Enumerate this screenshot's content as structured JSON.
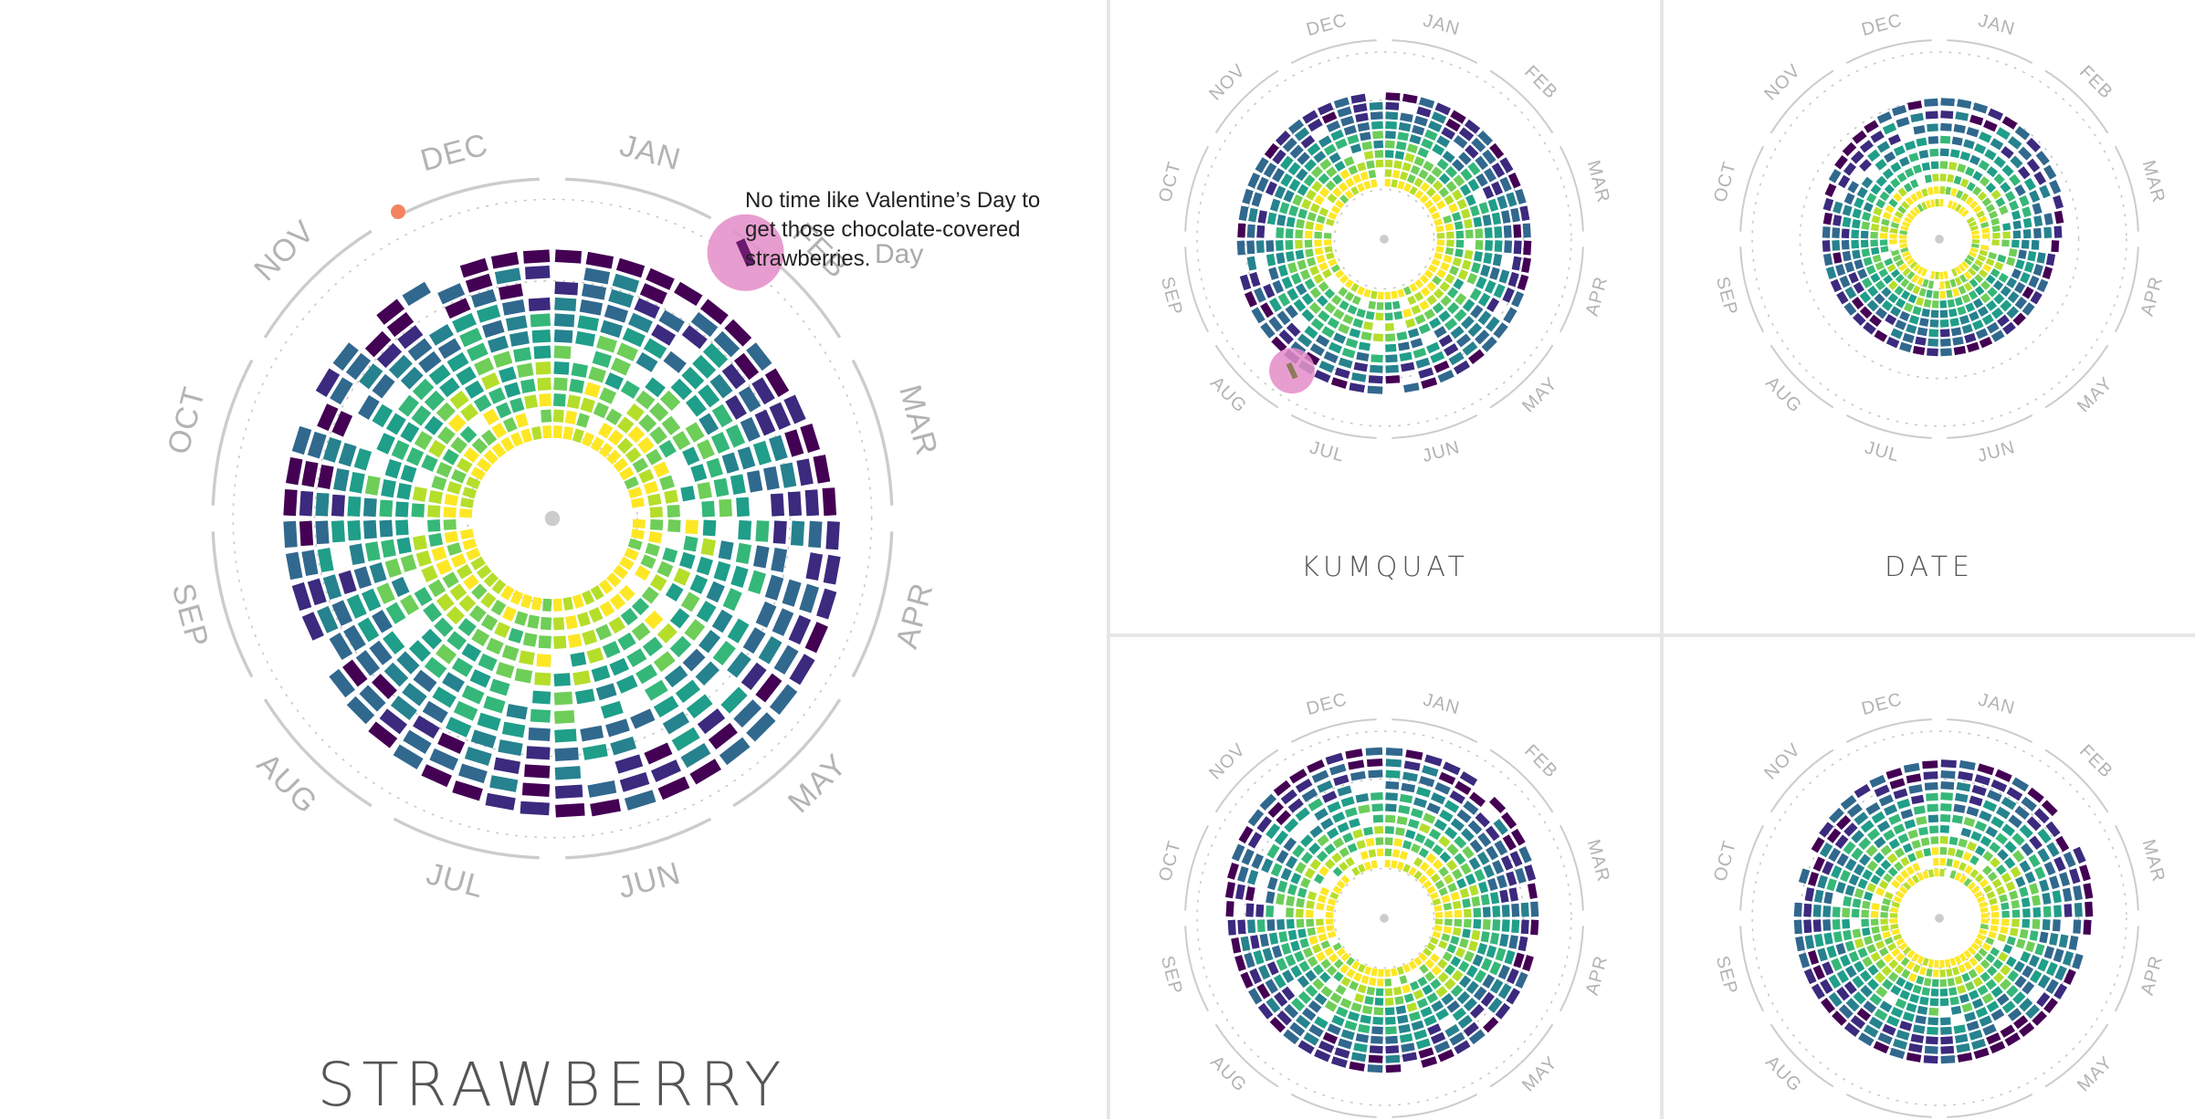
{
  "months": [
    "JAN",
    "FEB",
    "MAR",
    "APR",
    "MAY",
    "JUN",
    "JUL",
    "AUG",
    "SEP",
    "OCT",
    "NOV",
    "DEC"
  ],
  "main": {
    "title": "STRAWBERRY",
    "annotation": "No time like Valentine’s Day to get those chocolate-covered strawberries.",
    "annotation_ghost": "Day"
  },
  "panels": {
    "kumquat": {
      "title": "KUMQUAT"
    },
    "date": {
      "title": "DATE"
    },
    "bottom_left": {
      "title": ""
    },
    "bottom_right": {
      "title": ""
    }
  },
  "colors": {
    "viridis": [
      "#440154",
      "#3b2a7e",
      "#31688e",
      "#26828e",
      "#1f9e89",
      "#35b779",
      "#6ece58",
      "#b5de2b",
      "#fde725"
    ],
    "highlight": "#e48cc8",
    "marker": "#f4845f",
    "axis": "#cccccc"
  },
  "chart_data": [
    {
      "type": "radial-heatmap",
      "name": "STRAWBERRY",
      "theta": "month of year (JAN at top, clockwise)",
      "radius": "year",
      "color": "search interest (purple = low, yellow = high)",
      "highlight_month": "FEB",
      "highlight_note": "No time like Valentine’s Day to get those chocolate-covered strawberries."
    },
    {
      "type": "radial-heatmap",
      "name": "KUMQUAT",
      "highlight_month": "JUL"
    },
    {
      "type": "radial-heatmap",
      "name": "DATE"
    },
    {
      "type": "radial-heatmap",
      "name": ""
    },
    {
      "type": "radial-heatmap",
      "name": ""
    }
  ]
}
